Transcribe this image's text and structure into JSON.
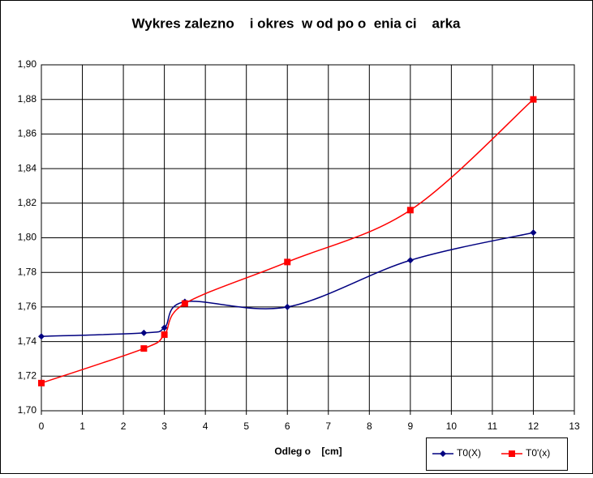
{
  "chart_data": {
    "type": "line",
    "title": "Wykres zalezno    i okres  w od po o  enia ci    arka",
    "x_label": "Odleg o    [cm]",
    "xlim": [
      0,
      13
    ],
    "xticks": [
      0,
      1,
      2,
      3,
      4,
      5,
      6,
      7,
      8,
      9,
      10,
      11,
      12,
      13
    ],
    "ylim": [
      1.7,
      1.9
    ],
    "yticks": [
      {
        "value": 1.7,
        "label": "1,70"
      },
      {
        "value": 1.72,
        "label": "1,72"
      },
      {
        "value": 1.74,
        "label": "1,74"
      },
      {
        "value": 1.76,
        "label": "1,76"
      },
      {
        "value": 1.78,
        "label": "1,78"
      },
      {
        "value": 1.8,
        "label": "1,80"
      },
      {
        "value": 1.82,
        "label": "1,82"
      },
      {
        "value": 1.84,
        "label": "1,84"
      },
      {
        "value": 1.86,
        "label": "1,86"
      },
      {
        "value": 1.88,
        "label": "1,88"
      },
      {
        "value": 1.9,
        "label": "1,90"
      }
    ],
    "grid": true,
    "series": [
      {
        "name": "T0(X)",
        "color": "#000080",
        "marker": "diamond",
        "x": [
          0,
          2.5,
          3,
          3.5,
          6,
          9,
          12
        ],
        "values": [
          1.743,
          1.745,
          1.748,
          1.763,
          1.76,
          1.787,
          1.803
        ]
      },
      {
        "name": "T0'(x)",
        "color": "#ff0000",
        "marker": "square",
        "x": [
          0,
          2.5,
          3,
          3.5,
          6,
          9,
          12
        ],
        "values": [
          1.716,
          1.736,
          1.744,
          1.762,
          1.786,
          1.816,
          1.88
        ]
      }
    ]
  }
}
